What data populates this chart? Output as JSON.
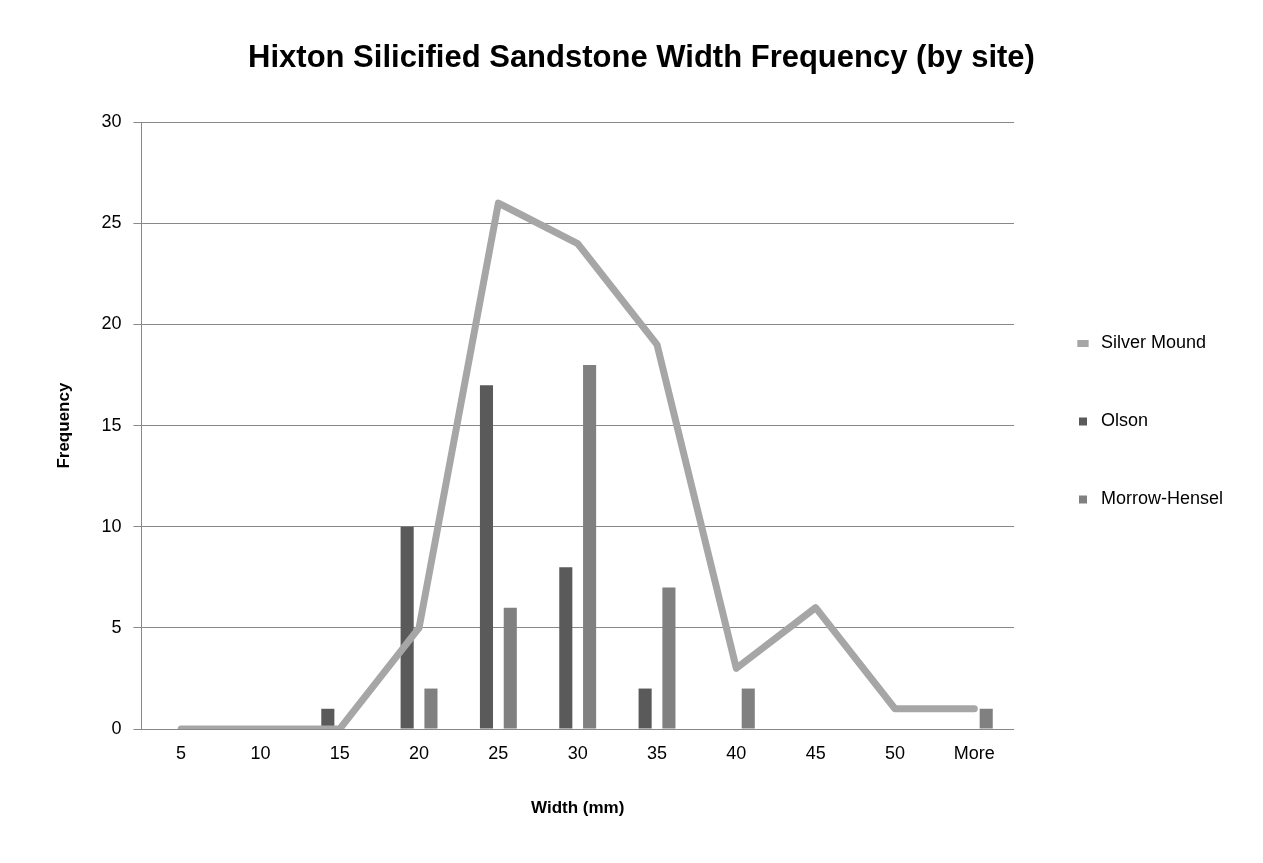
{
  "chart_data": {
    "type": "bar",
    "title": "Hixton Silicified Sandstone Width Frequency (by site)",
    "xlabel": "Width (mm)",
    "ylabel": "Frequency",
    "categories": [
      "5",
      "10",
      "15",
      "20",
      "25",
      "30",
      "35",
      "40",
      "45",
      "50",
      "More"
    ],
    "series": [
      {
        "name": "Olson",
        "color": "#5a5a5a",
        "values": [
          0,
          0,
          1,
          10,
          17,
          8,
          2,
          0,
          0,
          0,
          0
        ]
      },
      {
        "name": "Morrow-Hensel",
        "color": "#808080",
        "values": [
          0,
          0,
          0,
          2,
          6,
          18,
          7,
          2,
          0,
          0,
          1
        ]
      },
      {
        "name": "Silver Mound",
        "type": "line",
        "color": "#a6a6a6",
        "values": [
          0,
          0,
          0,
          5,
          26,
          24,
          19,
          3,
          6,
          1,
          1
        ]
      }
    ],
    "ylim": [
      0,
      30
    ],
    "yticks": [
      0,
      5,
      10,
      15,
      20,
      25,
      30
    ],
    "grid": "y",
    "legend": "right",
    "marker": "none",
    "line_style": "solid"
  }
}
